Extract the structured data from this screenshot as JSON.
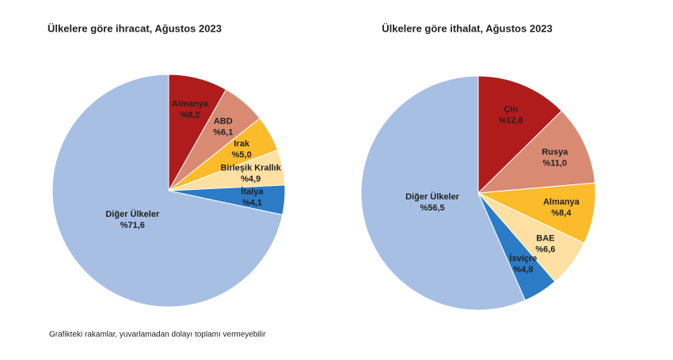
{
  "chart_data": [
    {
      "type": "pie",
      "title": "Ülkelere göre ihracat, Ağustos 2023",
      "categories": [
        "Almanya",
        "ABD",
        "Irak",
        "Birleşik Krallık",
        "İtalya",
        "Diğer Ülkeler"
      ],
      "values": [
        8.2,
        6.1,
        5.0,
        4.9,
        4.1,
        71.6
      ],
      "value_labels": [
        "%8,2",
        "%6,1",
        "%5,0",
        "%4,9",
        "%4,1",
        "%71,6"
      ],
      "colors": [
        "#b01c1c",
        "#d98a73",
        "#fbbb2a",
        "#fde0a2",
        "#2b7bc6",
        "#a7bfe3"
      ]
    },
    {
      "type": "pie",
      "title": "Ülkelere göre ithalat, Ağustos 2023",
      "categories": [
        "Çin",
        "Rusya",
        "Almanya",
        "BAE",
        "İsviçre",
        "Diğer Ülkeler"
      ],
      "values": [
        12.6,
        11.0,
        8.4,
        6.6,
        4.8,
        56.5
      ],
      "value_labels": [
        "%12,6",
        "%11,0",
        "%8,4",
        "%6,6",
        "%4,8",
        "%56,5"
      ],
      "colors": [
        "#b01c1c",
        "#d98a73",
        "#fbbb2a",
        "#fde0a2",
        "#2b7bc6",
        "#a7bfe3"
      ]
    }
  ],
  "note": "Grafikteki rakamlar, yuvarlamadan dolayı toplamı vermeyebilir"
}
